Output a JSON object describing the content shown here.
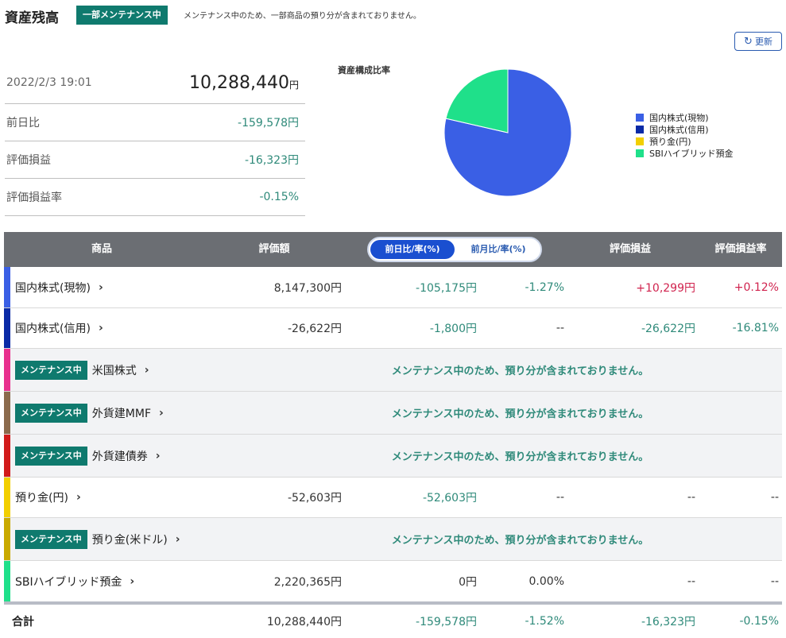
{
  "header": {
    "title": "資産残高",
    "maintenance_badge": "一部メンテナンス中",
    "maintenance_note": "メンテナンス中のため、一部商品の預り分が含まれておりません。",
    "refresh_label": "更新"
  },
  "summary": {
    "datetime": "2022/2/3 19:01",
    "total": "10,288,440",
    "total_unit": "円",
    "rows": [
      {
        "label": "前日比",
        "value": "-159,578円"
      },
      {
        "label": "評価損益",
        "value": "-16,323円"
      },
      {
        "label": "評価損益率",
        "value": "-0.15%"
      }
    ]
  },
  "chart_data": {
    "type": "pie",
    "title": "資産構成比率",
    "legend_position": "right",
    "slices": [
      {
        "label": "国内株式(現物)",
        "value": 8147300,
        "color": "#3a5fe5"
      },
      {
        "label": "国内株式(信用)",
        "value": 0,
        "color": "#0a2aa6"
      },
      {
        "label": "預り金(円)",
        "value": 0,
        "color": "#f2cf00"
      },
      {
        "label": "SBIハイブリッド預金",
        "value": 2220365,
        "color": "#1fe08a"
      }
    ]
  },
  "table": {
    "headers": {
      "product": "商品",
      "valuation": "評価額",
      "gain": "評価損益",
      "gain_rate": "評価損益率"
    },
    "toggle": {
      "active": "前日比/率(%)",
      "inactive": "前月比/率(%)"
    },
    "maintenance_label": "メンテナンス中",
    "rows": [
      {
        "name": "国内株式(現物)",
        "color": "#3a5fe5",
        "valuation": "8,147,300円",
        "change": "-105,175円",
        "change_rate": "-1.27%",
        "gain": "+10,299円",
        "gain_rate": "+0.12%"
      },
      {
        "name": "国内株式(信用)",
        "color": "#0a2aa6",
        "valuation": "-26,622円",
        "change": "-1,800円",
        "change_rate": "--",
        "gain": "-26,622円",
        "gain_rate": "-16.81%"
      },
      {
        "name": "米国株式",
        "color": "#e8308e",
        "message": "メンテナンス中のため、預り分が含まれておりません。"
      },
      {
        "name": "外貨建MMF",
        "color": "#8b6a4c",
        "message": "メンテナンス中のため、預り分が含まれておりません。"
      },
      {
        "name": "外貨建債券",
        "color": "#d11a1a",
        "message": "メンテナンス中のため、預り分が含まれておりません。"
      },
      {
        "name": "預り金(円)",
        "color": "#f2cf00",
        "valuation": "-52,603円",
        "change": "-52,603円",
        "change_rate": "--",
        "gain": "--",
        "gain_rate": "--"
      },
      {
        "name": "預り金(米ドル)",
        "color": "#c9aa00",
        "message": "メンテナンス中のため、預り分が含まれておりません。"
      },
      {
        "name": "SBIハイブリッド預金",
        "color": "#1fe08a",
        "valuation": "2,220,365円",
        "change": "0円",
        "change_rate": "0.00%",
        "gain": "--",
        "gain_rate": "--"
      }
    ],
    "total": {
      "label": "合計",
      "valuation": "10,288,440円",
      "change": "-159,578円",
      "change_rate": "-1.52%",
      "gain": "-16,323円",
      "gain_rate": "-0.15%"
    }
  },
  "colors": {
    "accent": "#0f7a6e",
    "positive": "#d0234e",
    "teal_value": "#2f8a7a",
    "header_bg": "#6b6e73",
    "toggle_active": "#1a4fd0"
  }
}
